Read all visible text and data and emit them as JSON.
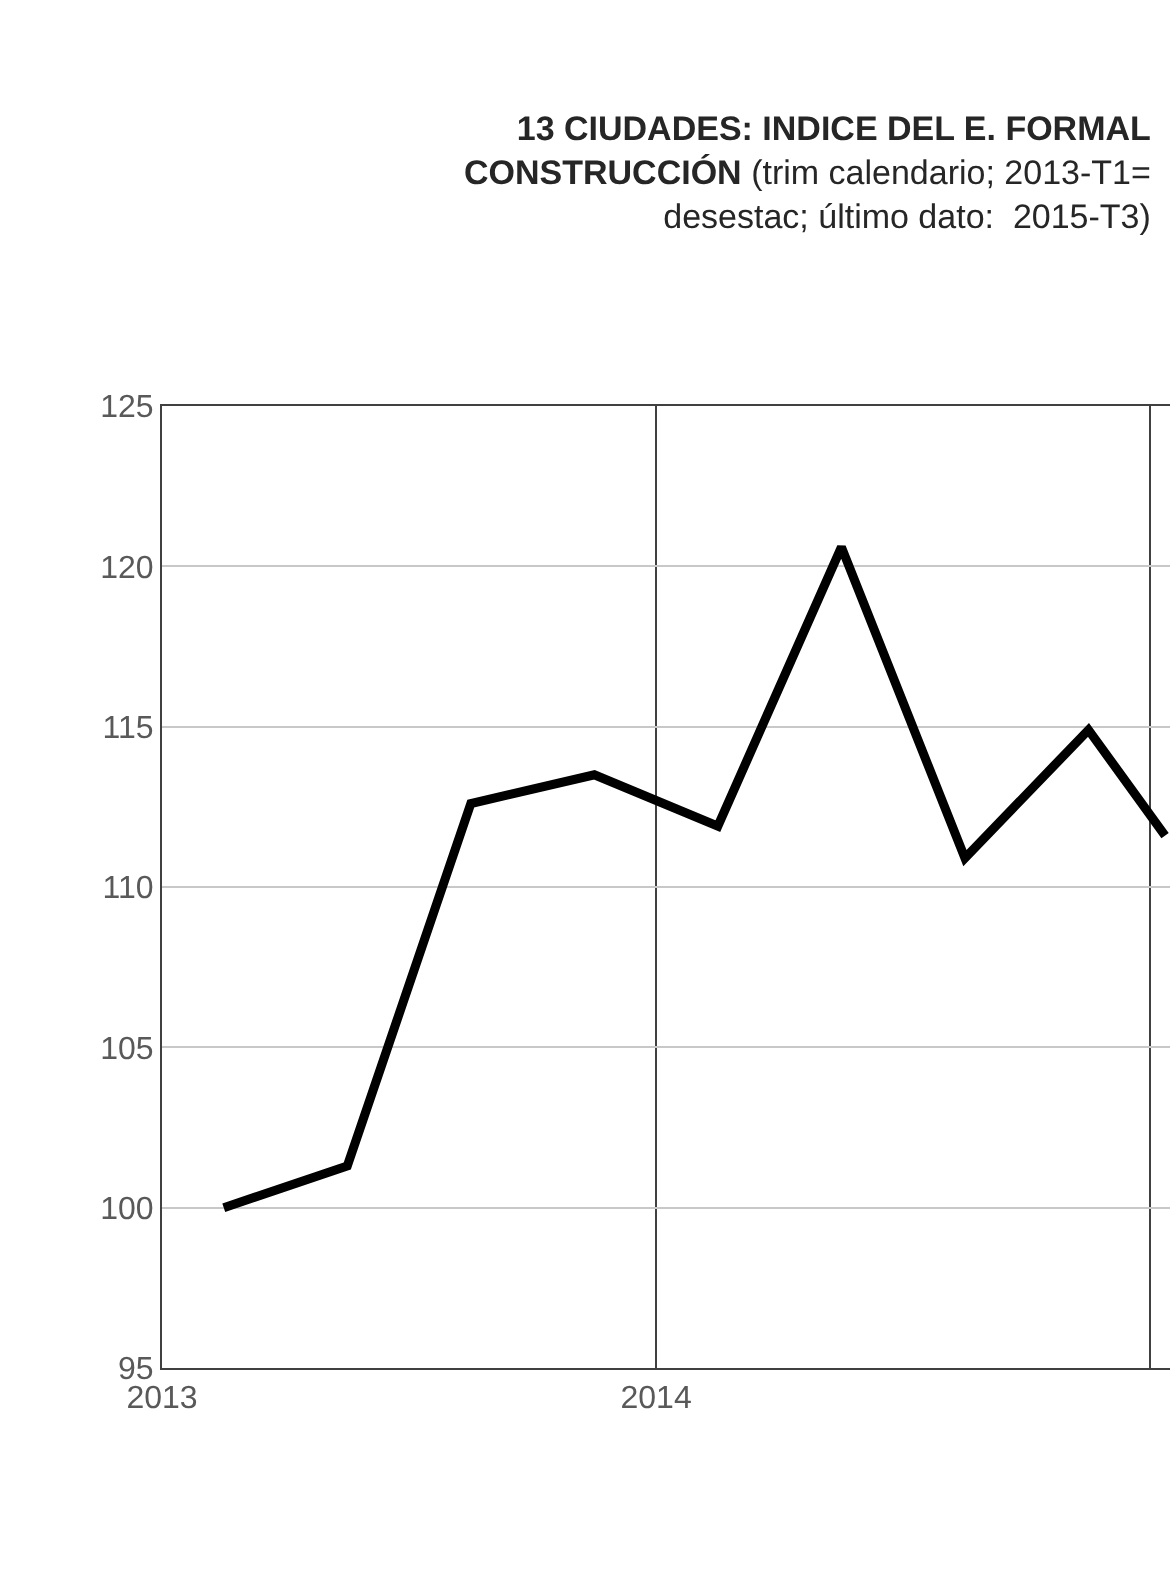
{
  "chart_data": {
    "type": "line",
    "title": "13 CIUDADES: INDICE DEL E. FORMAL\nCONSTRUCCIÓN (trim calendario; 2013-T1=\ndesestac; último dato:  2015-T3)",
    "x": [
      2013.125,
      2013.375,
      2013.625,
      2013.875,
      2014.125,
      2014.375,
      2014.625,
      2014.875,
      2015.03
    ],
    "series": [
      {
        "color": "#000000",
        "values": [
          100.0,
          101.3,
          112.6,
          113.5,
          111.9,
          120.6,
          110.9,
          114.9,
          111.6
        ]
      }
    ],
    "xlim": [
      2013,
      2015.04
    ],
    "xticks": [
      2013,
      2014,
      {
        "value": 2015,
        "label": null
      }
    ],
    "ylim": [
      95,
      125
    ],
    "yticks": [
      95,
      100,
      105,
      110,
      115,
      120,
      125
    ],
    "grid": true,
    "marker": "none",
    "line_style": "solid",
    "legend": false
  }
}
